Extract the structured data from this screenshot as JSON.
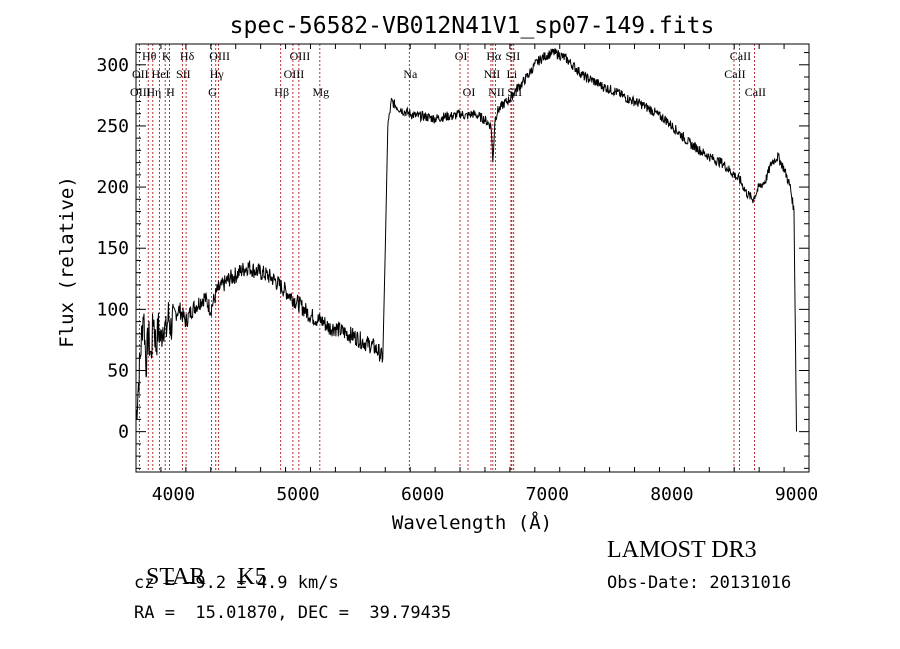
{
  "chart_data": {
    "type": "line",
    "title": "spec-56582-VB012N41V1_sp07-149.fits",
    "xlabel": "Wavelength (Å)",
    "ylabel": "Flux (relative)",
    "xlim": [
      3700,
      9100
    ],
    "ylim": [
      -33,
      317
    ],
    "x_ticks": [
      4000,
      5000,
      6000,
      7000,
      8000,
      9000
    ],
    "y_ticks": [
      0,
      50,
      100,
      150,
      200,
      250,
      300
    ],
    "grid": false,
    "series": [
      {
        "x": [
          3700,
          3720,
          3740,
          3760,
          3780,
          3800,
          3820,
          3840,
          3860,
          3880,
          3900,
          3920,
          3940,
          3960,
          3980,
          4000,
          4050,
          4100,
          4150,
          4200,
          4250,
          4300,
          4350,
          4400,
          4450,
          4500,
          4550,
          4600,
          4650,
          4700,
          4750,
          4800,
          4850,
          4900,
          4950,
          5000,
          5050,
          5100,
          5150,
          5200,
          5250,
          5300,
          5350,
          5400,
          5450,
          5500,
          5550,
          5600,
          5650,
          5680,
          5700,
          5720,
          5750,
          5800,
          5850,
          5900,
          5950,
          6000,
          6050,
          6100,
          6150,
          6200,
          6250,
          6300,
          6350,
          6400,
          6450,
          6500,
          6550,
          6563,
          6580,
          6600,
          6650,
          6700,
          6750,
          6800,
          6850,
          6900,
          6950,
          7000,
          7050,
          7100,
          7150,
          7200,
          7250,
          7300,
          7350,
          7400,
          7450,
          7500,
          7550,
          7600,
          7650,
          7700,
          7750,
          7800,
          7850,
          7900,
          7950,
          8000,
          8050,
          8100,
          8150,
          8200,
          8250,
          8300,
          8350,
          8400,
          8450,
          8500,
          8550,
          8600,
          8650,
          8700,
          8750,
          8800,
          8850,
          8900,
          8950,
          8980,
          9000
        ],
        "y": [
          10,
          40,
          70,
          100,
          55,
          80,
          60,
          95,
          70,
          85,
          75,
          90,
          80,
          95,
          85,
          95,
          100,
          90,
          100,
          105,
          110,
          100,
          115,
          120,
          125,
          128,
          132,
          135,
          132,
          130,
          128,
          125,
          120,
          115,
          110,
          105,
          100,
          95,
          92,
          90,
          85,
          85,
          82,
          80,
          78,
          75,
          72,
          70,
          65,
          60,
          150,
          250,
          270,
          265,
          262,
          260,
          258,
          258,
          257,
          256,
          257,
          258,
          258,
          260,
          258,
          260,
          258,
          255,
          250,
          220,
          255,
          262,
          268,
          272,
          280,
          285,
          292,
          300,
          305,
          308,
          310,
          308,
          305,
          300,
          295,
          290,
          288,
          285,
          282,
          280,
          278,
          275,
          272,
          270,
          268,
          265,
          262,
          258,
          255,
          250,
          245,
          240,
          235,
          232,
          228,
          225,
          222,
          220,
          215,
          210,
          205,
          195,
          190,
          200,
          205,
          220,
          225,
          215,
          200,
          180,
          0
        ]
      }
    ],
    "line_labels": [
      {
        "label": "Hθ",
        "x": 3798,
        "row": 1
      },
      {
        "label": "OII",
        "x": 3727,
        "row": 2
      },
      {
        "label": "OIII",
        "x": 3727,
        "row": 3
      },
      {
        "label": "Hη",
        "x": 3835,
        "row": 3
      },
      {
        "label": "K",
        "x": 3934,
        "row": 1
      },
      {
        "label": "HeI",
        "x": 3889,
        "row": 2
      },
      {
        "label": "H",
        "x": 3968,
        "row": 3
      },
      {
        "label": "Hδ",
        "x": 4102,
        "row": 1
      },
      {
        "label": "SII",
        "x": 4072,
        "row": 2
      },
      {
        "label": "OIII",
        "x": 4363,
        "row": 1
      },
      {
        "label": "Hγ",
        "x": 4340,
        "row": 2
      },
      {
        "label": "G",
        "x": 4305,
        "row": 3
      },
      {
        "label": "OIII",
        "x": 5007,
        "row": 1
      },
      {
        "label": "OIII",
        "x": 4959,
        "row": 2
      },
      {
        "label": "Hβ",
        "x": 4861,
        "row": 3
      },
      {
        "label": "Mg",
        "x": 5175,
        "row": 3
      },
      {
        "label": "Na",
        "x": 5893,
        "row": 2
      },
      {
        "label": "OI",
        "x": 6300,
        "row": 1
      },
      {
        "label": "OI",
        "x": 6364,
        "row": 3
      },
      {
        "label": "Hα",
        "x": 6563,
        "row": 1
      },
      {
        "label": "SII",
        "x": 6716,
        "row": 1
      },
      {
        "label": "NII",
        "x": 6548,
        "row": 2
      },
      {
        "label": "Li",
        "x": 6708,
        "row": 2
      },
      {
        "label": "NII",
        "x": 6584,
        "row": 3
      },
      {
        "label": "SII",
        "x": 6731,
        "row": 3
      },
      {
        "label": "CaII",
        "x": 8542,
        "row": 1
      },
      {
        "label": "CaII",
        "x": 8498,
        "row": 2
      },
      {
        "label": "CaII",
        "x": 8662,
        "row": 3
      }
    ],
    "line_color": "#aa0000"
  },
  "info": {
    "class": "STAR",
    "subclass": "K5",
    "survey": "LAMOST DR3",
    "cz": "cz = −9.2 ± 4.9 km/s",
    "obs_date": "Obs-Date: 20131016",
    "coords": "RA =  15.01870, DEC =  39.79435"
  }
}
